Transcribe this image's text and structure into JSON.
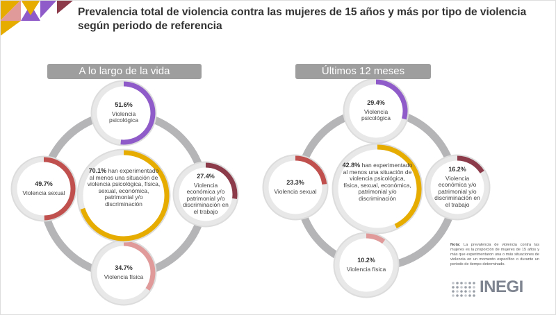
{
  "title": "Prevalencia total de violencia contra las mujeres de 15 años y más por tipo de violencia según periodo de referencia",
  "chart_data": [
    {
      "type": "donut",
      "title": "A lo largo de la vida",
      "categories": [
        "Violencia psicológica",
        "Violencia sexual",
        "Violencia económica y/o patrimonial y/o discriminación en el trabajo",
        "Violencia física",
        "han experimentado al menos una situación de violencia psicológica, física, sexual, económica, patrimonial y/o discriminación"
      ],
      "values": [
        51.6,
        49.7,
        27.4,
        34.7,
        70.1
      ],
      "value_labels": [
        "51.6%",
        "49.7%",
        "27.4%",
        "34.7%",
        "70.1%"
      ],
      "colors": [
        "#8e5bc9",
        "#c0504d",
        "#8c3b4a",
        "#e09a9a",
        "#e6ac00"
      ],
      "ylim": [
        0,
        100
      ]
    },
    {
      "type": "donut",
      "title": "Últimos 12 meses",
      "categories": [
        "Violencia psicológica",
        "Violencia sexual",
        "Violencia económica y/o patrimonial y/o discriminación en el trabajo",
        "Violencia física",
        "han experimentado al menos una situación de violencia psicológica, física, sexual, económica, patrimonial y/o discriminación"
      ],
      "values": [
        29.4,
        23.3,
        16.2,
        10.2,
        42.8
      ],
      "value_labels": [
        "29.4%",
        "23.3%",
        "16.2%",
        "10.2%",
        "42.8%"
      ],
      "colors": [
        "#8e5bc9",
        "#c0504d",
        "#8c3b4a",
        "#e09a9a",
        "#e6ac00"
      ],
      "ylim": [
        0,
        100
      ]
    }
  ],
  "note": {
    "label": "Nota:",
    "text": "La prevalencia de violencia contra las mujeres es la proporción de mujeres de 15 años y más que experimentaron una o más situaciones de violencia en un momento específico o durante un periodo de tiempo determinado."
  },
  "logo": "INEGI"
}
